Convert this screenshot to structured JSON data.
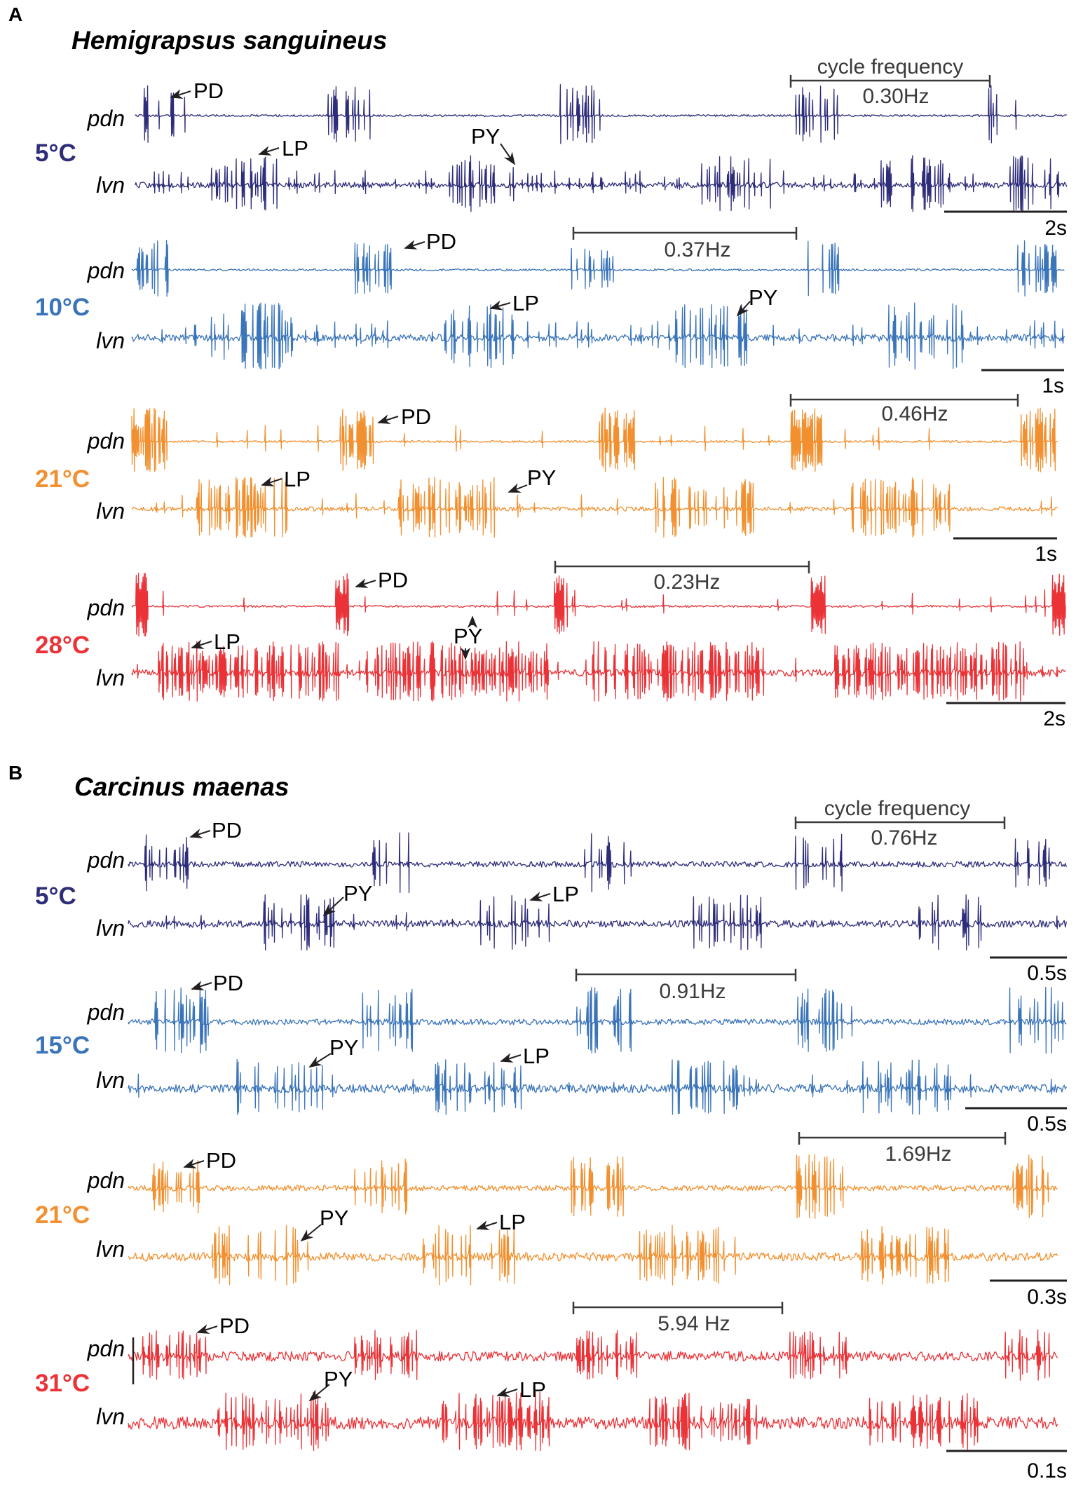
{
  "colors": {
    "c5": "#2e2d7a",
    "c10": "#3a74b9",
    "c15": "#3a74b9",
    "c21": "#f2902f",
    "c28": "#ea3237",
    "c31": "#ea3237",
    "text": "#231f20",
    "bracket": "#3a3a3a"
  },
  "panel_a": {
    "letter": "A",
    "species": "Hemigrapsus sanguineus",
    "pdn": "pdn",
    "lvn": "lvn",
    "temp_5": "5°C",
    "temp_10": "10°C",
    "temp_21": "21°C",
    "temp_28": "28°C",
    "cycle_label": "cycle frequency",
    "freq_5": "0.30Hz",
    "freq_10": "0.37Hz",
    "freq_21": "0.46Hz",
    "freq_28": "0.23Hz",
    "scale_5": "2s",
    "scale_10": "1s",
    "scale_21": "1s",
    "scale_28": "2s",
    "pd": "PD",
    "lp": "LP",
    "py": "PY"
  },
  "panel_b": {
    "letter": "B",
    "species": "Carcinus maenas",
    "pdn": "pdn",
    "lvn": "lvn",
    "temp_5": "5°C",
    "temp_15": "15°C",
    "temp_21": "21°C",
    "temp_31": "31°C",
    "cycle_label": "cycle frequency",
    "freq_5": "0.76Hz",
    "freq_15": "0.91Hz",
    "freq_21": "1.69Hz",
    "freq_31": "5.94 Hz",
    "scale_5": "0.5s",
    "scale_15": "0.5s",
    "scale_21": "0.3s",
    "scale_31": "0.1s",
    "pd": "PD",
    "lp": "LP",
    "py": "PY"
  }
}
